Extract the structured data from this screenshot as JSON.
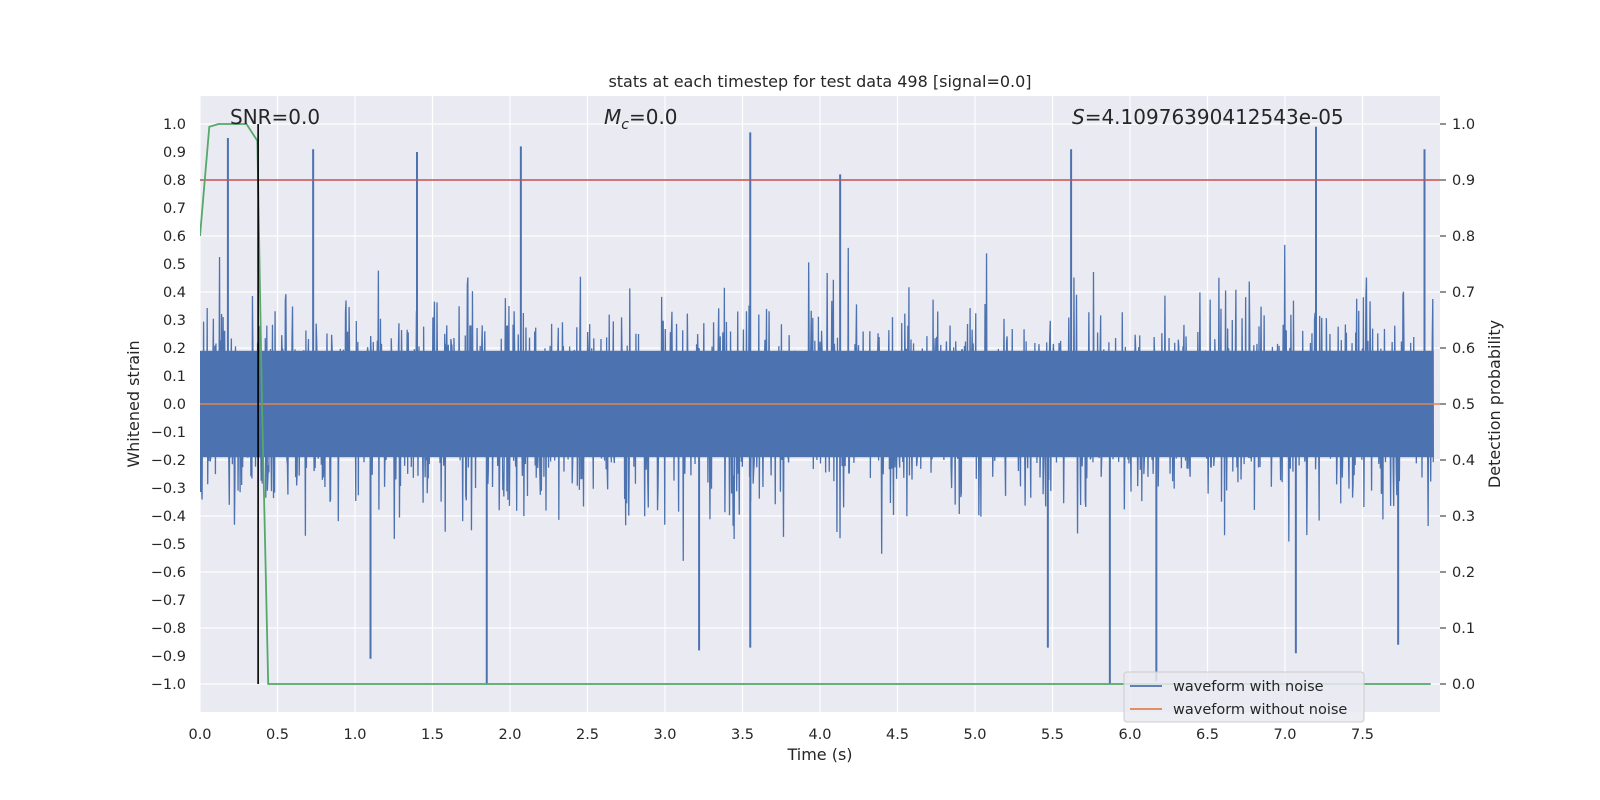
{
  "chart_data": {
    "type": "line",
    "title": "stats at each timestep for test data 498 [signal=0.0]",
    "xlabel": "Time (s)",
    "ylabel_left": "Whitened strain",
    "ylabel_right": "Detection probability",
    "xlim": [
      0.0,
      8.0
    ],
    "ylim_left": [
      -1.1,
      1.1
    ],
    "ylim_right": [
      -0.05,
      1.05
    ],
    "x_ticks": [
      "0.0",
      "0.5",
      "1.0",
      "1.5",
      "2.0",
      "2.5",
      "3.0",
      "3.5",
      "4.0",
      "4.5",
      "5.0",
      "5.5",
      "6.0",
      "6.5",
      "7.0",
      "7.5"
    ],
    "y_ticks_left": [
      "1.0",
      "0.9",
      "0.8",
      "0.7",
      "0.6",
      "0.5",
      "0.4",
      "0.3",
      "0.2",
      "0.1",
      "0.0",
      "−0.1",
      "−0.2",
      "−0.3",
      "−0.4",
      "−0.5",
      "−0.6",
      "−0.7",
      "−0.8",
      "−0.9",
      "−1.0"
    ],
    "y_ticks_right": [
      "1.0",
      "0.9",
      "0.8",
      "0.7",
      "0.6",
      "0.5",
      "0.4",
      "0.3",
      "0.2",
      "0.1",
      "0.0"
    ],
    "annotations": {
      "snr": "SNR=0.0",
      "mc": "M_c=0.0",
      "mc_main": "M",
      "mc_sub": "c",
      "mc_rest": "=0.0",
      "s_italic": "S",
      "s_rest": "=4.10976390412543e-05"
    },
    "threshold": {
      "y_right": 0.9,
      "color": "#c44e52"
    },
    "detection_marker_x": 0.375,
    "series": [
      {
        "name": "waveform with noise",
        "color": "#4c72b0",
        "description": "whitened noisy strain, dense random fluctuations mostly within ±0.5",
        "extreme_peaks": [
          {
            "x": 0.18,
            "y": 0.95
          },
          {
            "x": 0.73,
            "y": 0.91
          },
          {
            "x": 1.4,
            "y": 0.9
          },
          {
            "x": 2.07,
            "y": 0.92
          },
          {
            "x": 3.55,
            "y": 0.97
          },
          {
            "x": 4.13,
            "y": 0.82
          },
          {
            "x": 5.62,
            "y": 0.91
          },
          {
            "x": 7.2,
            "y": 0.99
          },
          {
            "x": 7.9,
            "y": 0.91
          }
        ],
        "extreme_troughs": [
          {
            "x": 1.85,
            "y": -1.0
          },
          {
            "x": 5.87,
            "y": -1.0
          },
          {
            "x": 6.17,
            "y": -0.99
          },
          {
            "x": 1.1,
            "y": -0.91
          },
          {
            "x": 3.22,
            "y": -0.88
          },
          {
            "x": 7.07,
            "y": -0.89
          },
          {
            "x": 3.55,
            "y": -0.87
          },
          {
            "x": 5.47,
            "y": -0.87
          },
          {
            "x": 7.73,
            "y": -0.86
          }
        ]
      },
      {
        "name": "waveform without noise",
        "color": "#dd8452",
        "description": "flat zero (signal=0.0)",
        "y": 0.0
      },
      {
        "name": "detection probability",
        "color": "#55a868",
        "axis": "right",
        "points": [
          {
            "x": 0.0,
            "y": 0.8
          },
          {
            "x": 0.06,
            "y": 0.995
          },
          {
            "x": 0.12,
            "y": 1.0
          },
          {
            "x": 0.3,
            "y": 1.0
          },
          {
            "x": 0.37,
            "y": 0.97
          },
          {
            "x": 0.4,
            "y": 0.5
          },
          {
            "x": 0.44,
            "y": 0.0
          },
          {
            "x": 7.94,
            "y": 0.0
          }
        ]
      }
    ],
    "legend": {
      "location": "lower right",
      "entries": [
        {
          "label": "waveform with noise",
          "color": "#4c72b0"
        },
        {
          "label": "waveform without noise",
          "color": "#dd8452"
        }
      ]
    },
    "style": {
      "plot_background": "#eaeaf2",
      "grid_color": "#ffffff",
      "noise_color": "#4c72b0",
      "clean_color": "#dd8452",
      "prob_color": "#55a868",
      "threshold_color": "#c44e52",
      "marker_color": "#000000"
    }
  }
}
